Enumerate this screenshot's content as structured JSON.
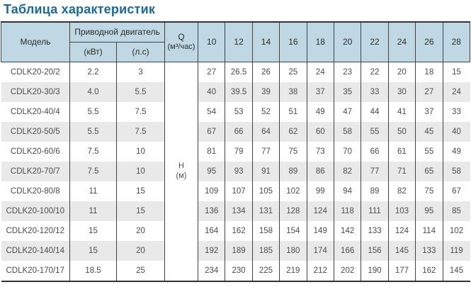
{
  "page_title": "Таблица характеристик",
  "colors": {
    "title_blue": "#1a6a9e",
    "header_bg": "#bfd8e3",
    "stripe_gray": "#e9e9e9",
    "border_dark": "#424242",
    "border_heavy": "#333333",
    "text_dark": "#2c2c2c",
    "text_data": "#4d4d4d"
  },
  "table": {
    "header": {
      "model": "Модель",
      "motor_group": "Приводной двигатель",
      "motor_kw": "(кВт)",
      "motor_hp": "(л.с)",
      "q_line1": "Q",
      "q_line2": "(м³/час)",
      "h_line1": "Н",
      "h_line2": "(м)",
      "flow_columns": [
        "10",
        "12",
        "14",
        "16",
        "18",
        "20",
        "22",
        "24",
        "26",
        "28"
      ]
    },
    "rows": [
      {
        "model": "CDLK20-20/2",
        "kw": "2.2",
        "hp": "3",
        "heads": [
          "27",
          "26.5",
          "26",
          "25",
          "24",
          "23",
          "22",
          "20",
          "18",
          "15"
        ]
      },
      {
        "model": "CDLK20-30/3",
        "kw": "4.0",
        "hp": "5.5",
        "heads": [
          "40",
          "39.5",
          "39",
          "38",
          "37",
          "35",
          "33",
          "30",
          "27",
          "24"
        ]
      },
      {
        "model": "CDLK20-40/4",
        "kw": "5.5",
        "hp": "7.5",
        "heads": [
          "54",
          "53",
          "52",
          "51",
          "49",
          "47",
          "44",
          "41",
          "37",
          "33"
        ]
      },
      {
        "model": "CDLK20-50/5",
        "kw": "5.5",
        "hp": "7.5",
        "heads": [
          "67",
          "66",
          "64",
          "62",
          "60",
          "58",
          "55",
          "50",
          "45",
          "40"
        ]
      },
      {
        "model": "CDLK20-60/6",
        "kw": "7.5",
        "hp": "10",
        "heads": [
          "81",
          "79",
          "77",
          "75",
          "73",
          "70",
          "66",
          "61",
          "55",
          "49"
        ]
      },
      {
        "model": "CDLK20-70/7",
        "kw": "7.5",
        "hp": "10",
        "heads": [
          "95",
          "93",
          "91",
          "89",
          "86",
          "82",
          "77",
          "71",
          "65",
          "58"
        ]
      },
      {
        "model": "CDLK20-80/8",
        "kw": "11",
        "hp": "15",
        "heads": [
          "109",
          "107",
          "105",
          "102",
          "99",
          "94",
          "89",
          "82",
          "75",
          "67"
        ]
      },
      {
        "model": "CDLK20-100/10",
        "kw": "11",
        "hp": "15",
        "heads": [
          "136",
          "134",
          "131",
          "128",
          "124",
          "118",
          "111",
          "103",
          "95",
          "85"
        ]
      },
      {
        "model": "CDLK20-120/12",
        "kw": "15",
        "hp": "20",
        "heads": [
          "164",
          "162",
          "158",
          "154",
          "149",
          "142",
          "133",
          "124",
          "114",
          "102"
        ]
      },
      {
        "model": "CDLK20-140/14",
        "kw": "15",
        "hp": "20",
        "heads": [
          "192",
          "189",
          "185",
          "180",
          "174",
          "166",
          "156",
          "145",
          "133",
          "119"
        ]
      },
      {
        "model": "CDLK20-170/17",
        "kw": "18.5",
        "hp": "25",
        "heads": [
          "234",
          "230",
          "225",
          "219",
          "212",
          "202",
          "190",
          "177",
          "162",
          "145"
        ]
      }
    ]
  }
}
